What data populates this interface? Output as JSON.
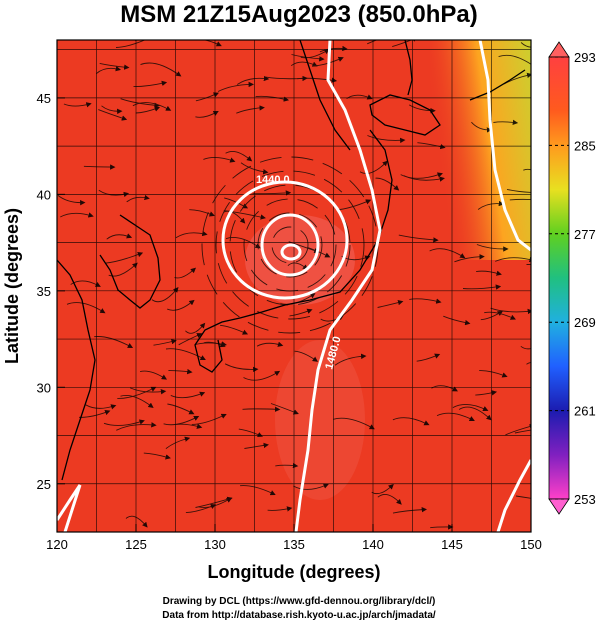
{
  "title": "MSM 21Z15Aug2023 (850.0hPa)",
  "x_axis": {
    "label": "Longitude (degrees)",
    "range": [
      120,
      150
    ],
    "ticks": [
      120,
      125,
      130,
      135,
      140,
      145,
      150
    ]
  },
  "y_axis": {
    "label": "Latitude  (degrees)",
    "range": [
      22.5,
      48
    ],
    "ticks": [
      25,
      30,
      35,
      40,
      45
    ]
  },
  "colorbar": {
    "range": [
      253,
      293
    ],
    "labels": [
      293,
      285,
      277,
      269,
      261,
      253
    ],
    "colors": [
      "#ff3030",
      "#ff6020",
      "#ffa020",
      "#ffe020",
      "#90e020",
      "#20c040",
      "#20c0c0",
      "#2070ff",
      "#2020c0",
      "#9020c0",
      "#ff30c0"
    ]
  },
  "contours": {
    "labels": [
      "1440.0",
      "1480.0"
    ],
    "color": "#ffffff"
  },
  "field": {
    "background_color": "#ec3a22",
    "warm_color": "#f04a3c",
    "cool_color": "#c8e030"
  },
  "credits": {
    "line1": "Drawing by DCL (https://www.gfd-dennou.org/library/dcl/)",
    "line2": "Data from http://database.rish.kyoto-u.ac.jp/arch/jmadata/"
  }
}
